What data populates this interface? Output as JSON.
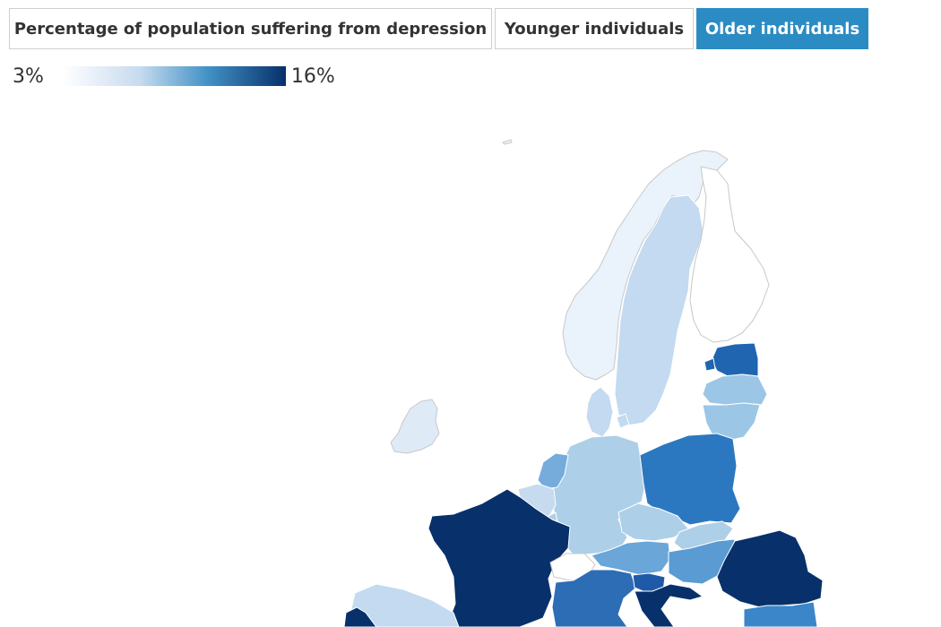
{
  "tabs": [
    {
      "label": "Percentage of population suffering from depression",
      "active": false
    },
    {
      "label": "Younger individuals",
      "active": false
    },
    {
      "label": "Older individuals",
      "active": true
    }
  ],
  "legend": {
    "min_label": "3%",
    "max_label": "16%",
    "color_low": "#ffffff",
    "color_high": "#08306b"
  },
  "colors": {
    "active_tab": "#2b8cc4"
  }
}
